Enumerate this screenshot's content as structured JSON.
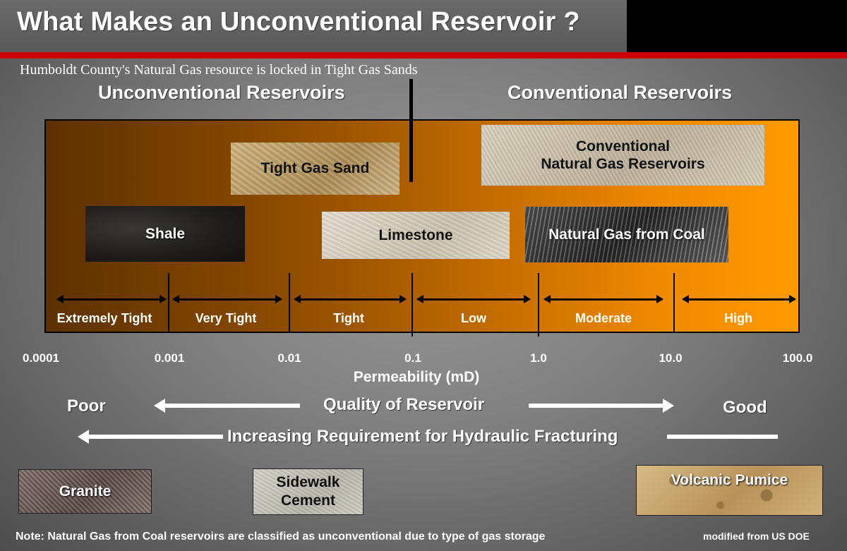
{
  "title": "What Makes an Unconventional Reservoir ?",
  "subtitle": "Humboldt County's Natural Gas resource is locked in Tight Gas Sands",
  "headers": {
    "unconventional": "Unconventional Reservoirs",
    "conventional": "Conventional Reservoirs"
  },
  "rocks": {
    "tight_gas_sand": "Tight Gas Sand",
    "conventional_line1": "Conventional",
    "conventional_line2": "Natural Gas Reservoirs",
    "shale": "Shale",
    "limestone": "Limestone",
    "coal": "Natural Gas from Coal"
  },
  "permeability_classes": [
    "Extremely Tight",
    "Very Tight",
    "Tight",
    "Low",
    "Moderate",
    "High"
  ],
  "axis": {
    "ticks": [
      "0.0001",
      "0.001",
      "0.01",
      "0.1",
      "1.0",
      "10.0",
      "100.0"
    ],
    "title": "Permeability (mD)"
  },
  "quality": {
    "poor": "Poor",
    "label": "Quality of Reservoir",
    "good": "Good"
  },
  "fracturing": "Increasing Requirement for Hydraulic Fracturing",
  "reference_rocks": {
    "granite": "Granite",
    "cement_line1": "Sidewalk",
    "cement_line2": "Cement",
    "pumice": "Volcanic Pumice"
  },
  "note": "Note:  Natural Gas from Coal reservoirs are classified as unconventional due to type of gas storage",
  "credit": "modified from US DOE",
  "colors": {
    "panel_dark": "#5c3100",
    "panel_light": "#ff9a00",
    "title_rule": "#cc0000"
  }
}
